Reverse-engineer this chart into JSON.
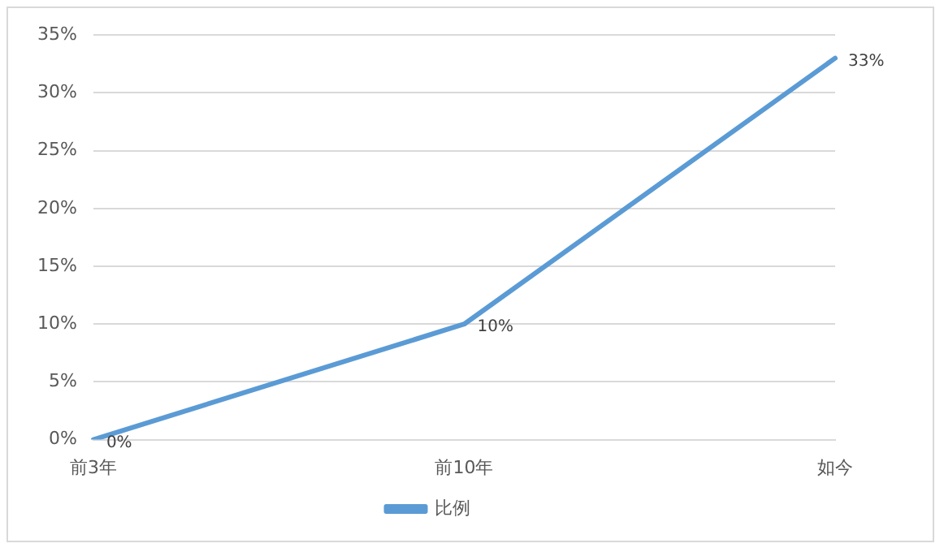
{
  "chart_data": {
    "type": "line",
    "categories": [
      "前3年",
      "前10年",
      "如今"
    ],
    "series": [
      {
        "name": "比例",
        "color": "#5b9bd5",
        "values": [
          0,
          10,
          33
        ],
        "value_labels": [
          "0%",
          "10%",
          "33%"
        ]
      }
    ],
    "ylim": [
      0,
      35
    ],
    "yticks": [
      {
        "value": 0,
        "label": "0%"
      },
      {
        "value": 5,
        "label": "5%"
      },
      {
        "value": 10,
        "label": "10%"
      },
      {
        "value": 15,
        "label": "15%"
      },
      {
        "value": 20,
        "label": "20%"
      },
      {
        "value": 25,
        "label": "25%"
      },
      {
        "value": 30,
        "label": "30%"
      },
      {
        "value": 35,
        "label": "35%"
      }
    ],
    "grid": "y",
    "legend": "bottom",
    "marker": "none",
    "line_style": "solid"
  }
}
